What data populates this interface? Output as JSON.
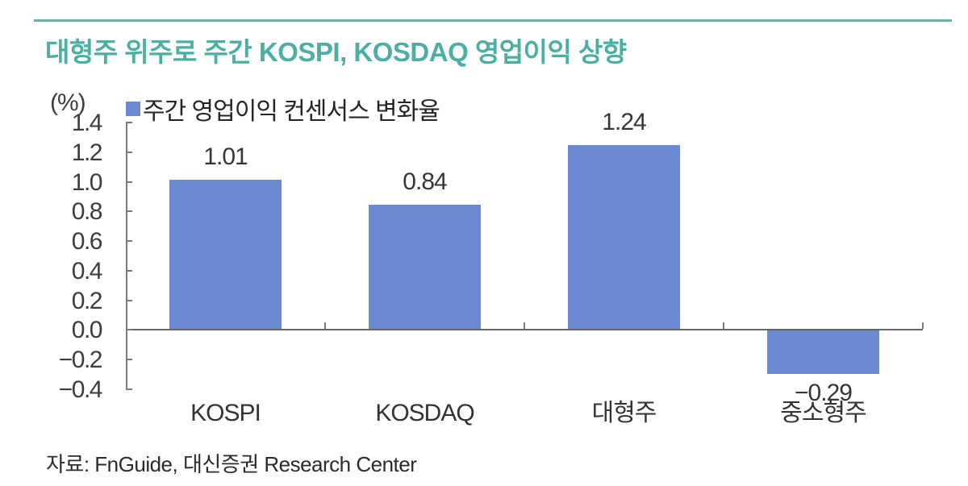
{
  "page": {
    "title": "대형주 위주로 주간 KOSPI, KOSDAQ 영업이익 상향",
    "source": "자료: FnGuide, 대신증권 Research Center"
  },
  "colors": {
    "title_teal": "#4bafa3",
    "rule_teal": "#6bb0a9",
    "bar_blue": "#6b8ad1",
    "axis_gray": "#7a7a7a",
    "label_gray": "#3d3d3d"
  },
  "chart_data": {
    "type": "bar",
    "title": "주간 영업이익 컨센서스 변화율",
    "unit_label": "(%)",
    "categories": [
      "KOSPI",
      "KOSDAQ",
      "대형주",
      "중소형주"
    ],
    "values": [
      1.01,
      0.84,
      1.24,
      -0.29
    ],
    "value_labels": [
      "1.01",
      "0.84",
      "1.24",
      "−0.29"
    ],
    "xlabel": "",
    "ylabel": "(%)",
    "ylim": [
      -0.4,
      1.4
    ],
    "ytick_step": 0.2,
    "ytick_labels": [
      "1.4",
      "1.2",
      "1.0",
      "0.8",
      "0.6",
      "0.4",
      "0.2",
      "0.0",
      "−0.2",
      "−0.4"
    ],
    "grid": false,
    "legend": [
      {
        "label": "주간 영업이익 컨센서스 변화율",
        "color": "#6b8ad1"
      }
    ],
    "legend_position": "top-left"
  }
}
